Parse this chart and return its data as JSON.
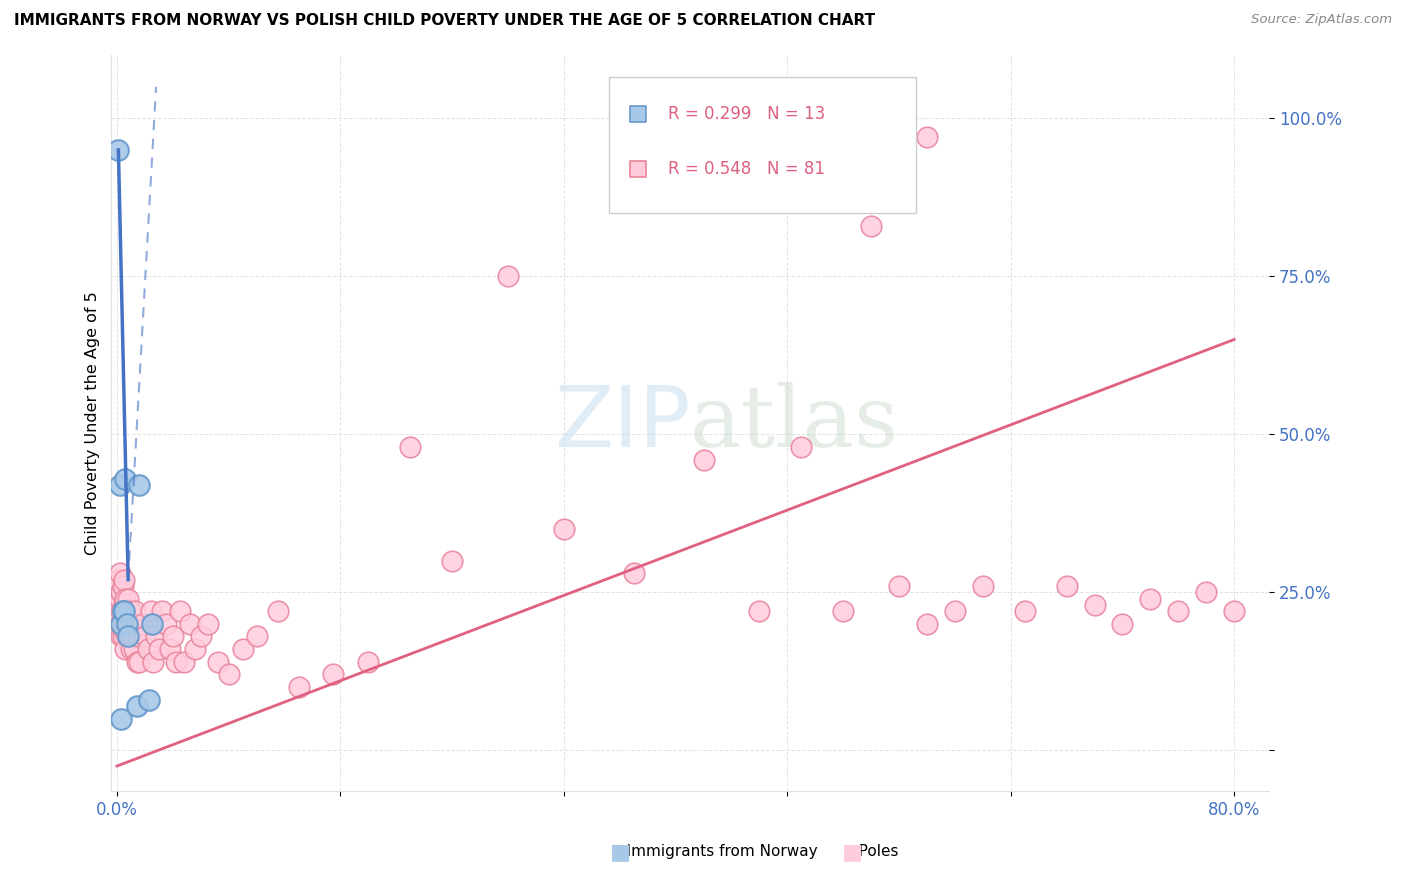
{
  "title": "IMMIGRANTS FROM NORWAY VS POLISH CHILD POVERTY UNDER THE AGE OF 5 CORRELATION CHART",
  "source": "Source: ZipAtlas.com",
  "ylabel": "Child Poverty Under the Age of 5",
  "norway_color": "#a8c8e8",
  "norway_edge": "#6699cc",
  "norway_line_color": "#4472C4",
  "poles_color": "#ffccdd",
  "poles_edge": "#e8849a",
  "poles_line_color": "#e06080",
  "legend_text_color": "#e06080",
  "tick_color": "#4472C4",
  "grid_color": "#e0e0e0",
  "watermark_color": "#c8ddf0",
  "xlim_min": -0.004,
  "xlim_max": 0.825,
  "ylim_min": -0.065,
  "ylim_max": 1.1,
  "yticks": [
    0.0,
    0.25,
    0.5,
    0.75,
    1.0
  ],
  "ytick_labels": [
    "",
    "25.0%",
    "50.0%",
    "75.0%",
    "100.0%"
  ],
  "xtick_positions": [
    0.0,
    0.16,
    0.32,
    0.48,
    0.64,
    0.8
  ],
  "xtick_labels": [
    "0.0%",
    "",
    "",
    "",
    "",
    "80.0%"
  ],
  "norway_x": [
    0.001,
    0.002,
    0.003,
    0.003,
    0.004,
    0.005,
    0.006,
    0.007,
    0.008,
    0.014,
    0.016,
    0.023,
    0.025
  ],
  "norway_y": [
    0.95,
    0.42,
    0.2,
    0.05,
    0.22,
    0.22,
    0.43,
    0.2,
    0.18,
    0.07,
    0.42,
    0.08,
    0.2
  ],
  "poles_x": [
    0.001,
    0.001,
    0.002,
    0.002,
    0.002,
    0.003,
    0.003,
    0.003,
    0.004,
    0.004,
    0.004,
    0.005,
    0.005,
    0.005,
    0.006,
    0.006,
    0.006,
    0.007,
    0.007,
    0.008,
    0.008,
    0.009,
    0.009,
    0.01,
    0.01,
    0.011,
    0.012,
    0.013,
    0.014,
    0.015,
    0.016,
    0.018,
    0.02,
    0.022,
    0.024,
    0.026,
    0.028,
    0.03,
    0.032,
    0.035,
    0.038,
    0.04,
    0.042,
    0.045,
    0.048,
    0.052,
    0.056,
    0.06,
    0.065,
    0.072,
    0.08,
    0.09,
    0.1,
    0.115,
    0.13,
    0.155,
    0.18,
    0.21,
    0.24,
    0.28,
    0.32,
    0.37,
    0.42,
    0.46,
    0.49,
    0.52,
    0.56,
    0.58,
    0.56,
    0.58,
    0.6,
    0.62,
    0.65,
    0.68,
    0.7,
    0.72,
    0.74,
    0.76,
    0.78,
    0.8,
    0.54
  ],
  "poles_y": [
    0.27,
    0.23,
    0.28,
    0.24,
    0.2,
    0.25,
    0.22,
    0.18,
    0.26,
    0.22,
    0.18,
    0.27,
    0.23,
    0.19,
    0.24,
    0.2,
    0.16,
    0.22,
    0.18,
    0.24,
    0.2,
    0.22,
    0.18,
    0.2,
    0.16,
    0.18,
    0.16,
    0.22,
    0.14,
    0.18,
    0.14,
    0.2,
    0.18,
    0.16,
    0.22,
    0.14,
    0.18,
    0.16,
    0.22,
    0.2,
    0.16,
    0.18,
    0.14,
    0.22,
    0.14,
    0.2,
    0.16,
    0.18,
    0.2,
    0.14,
    0.12,
    0.16,
    0.18,
    0.22,
    0.1,
    0.12,
    0.14,
    0.48,
    0.3,
    0.75,
    0.35,
    0.28,
    0.46,
    0.22,
    0.48,
    0.22,
    0.26,
    0.2,
    0.96,
    0.97,
    0.22,
    0.26,
    0.22,
    0.26,
    0.23,
    0.2,
    0.24,
    0.22,
    0.25,
    0.22,
    0.83
  ],
  "poles_line_x0": 0.0,
  "poles_line_y0": -0.025,
  "poles_line_x1": 0.8,
  "poles_line_y1": 0.65,
  "norway_line_solid_x0": 0.001,
  "norway_line_solid_y0": 0.95,
  "norway_line_solid_x1": 0.008,
  "norway_line_solid_y1": 0.27,
  "norway_line_dash_x0": 0.008,
  "norway_line_dash_y0": 0.27,
  "norway_line_dash_x1": 0.028,
  "norway_line_dash_y1": 1.05
}
